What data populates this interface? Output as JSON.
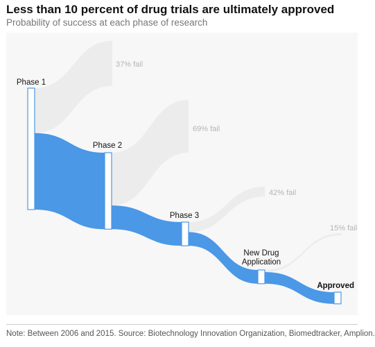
{
  "title": "Less than 10 percent of drug trials are ultimately approved",
  "subtitle": "Probability of success at each phase of research",
  "note": "Note: Between 2006 and 2015. Source: Biotechnology Innovation Organization, Biomedtracker, Amplion.",
  "colors": {
    "flow": "#4a98e6",
    "fail": "#ececec",
    "fail_label": "#b4b4b4",
    "node_border": "#4a98e6",
    "node_fill": "#ffffff"
  },
  "chart_data": {
    "type": "sankey",
    "stages": [
      {
        "label": "Phase 1",
        "value": 100
      },
      {
        "label": "Phase 2",
        "value": 63
      },
      {
        "label": "Phase 3",
        "value": 19.5
      },
      {
        "label": "New Drug Application",
        "value": 11.3
      },
      {
        "label": "Approved",
        "value": 9.6
      }
    ],
    "failures": [
      {
        "label": "37% fail",
        "percent": 37
      },
      {
        "label": "69% fail",
        "percent": 69
      },
      {
        "label": "42% fail",
        "percent": 42
      },
      {
        "label": "15% fail",
        "percent": 15
      }
    ]
  }
}
